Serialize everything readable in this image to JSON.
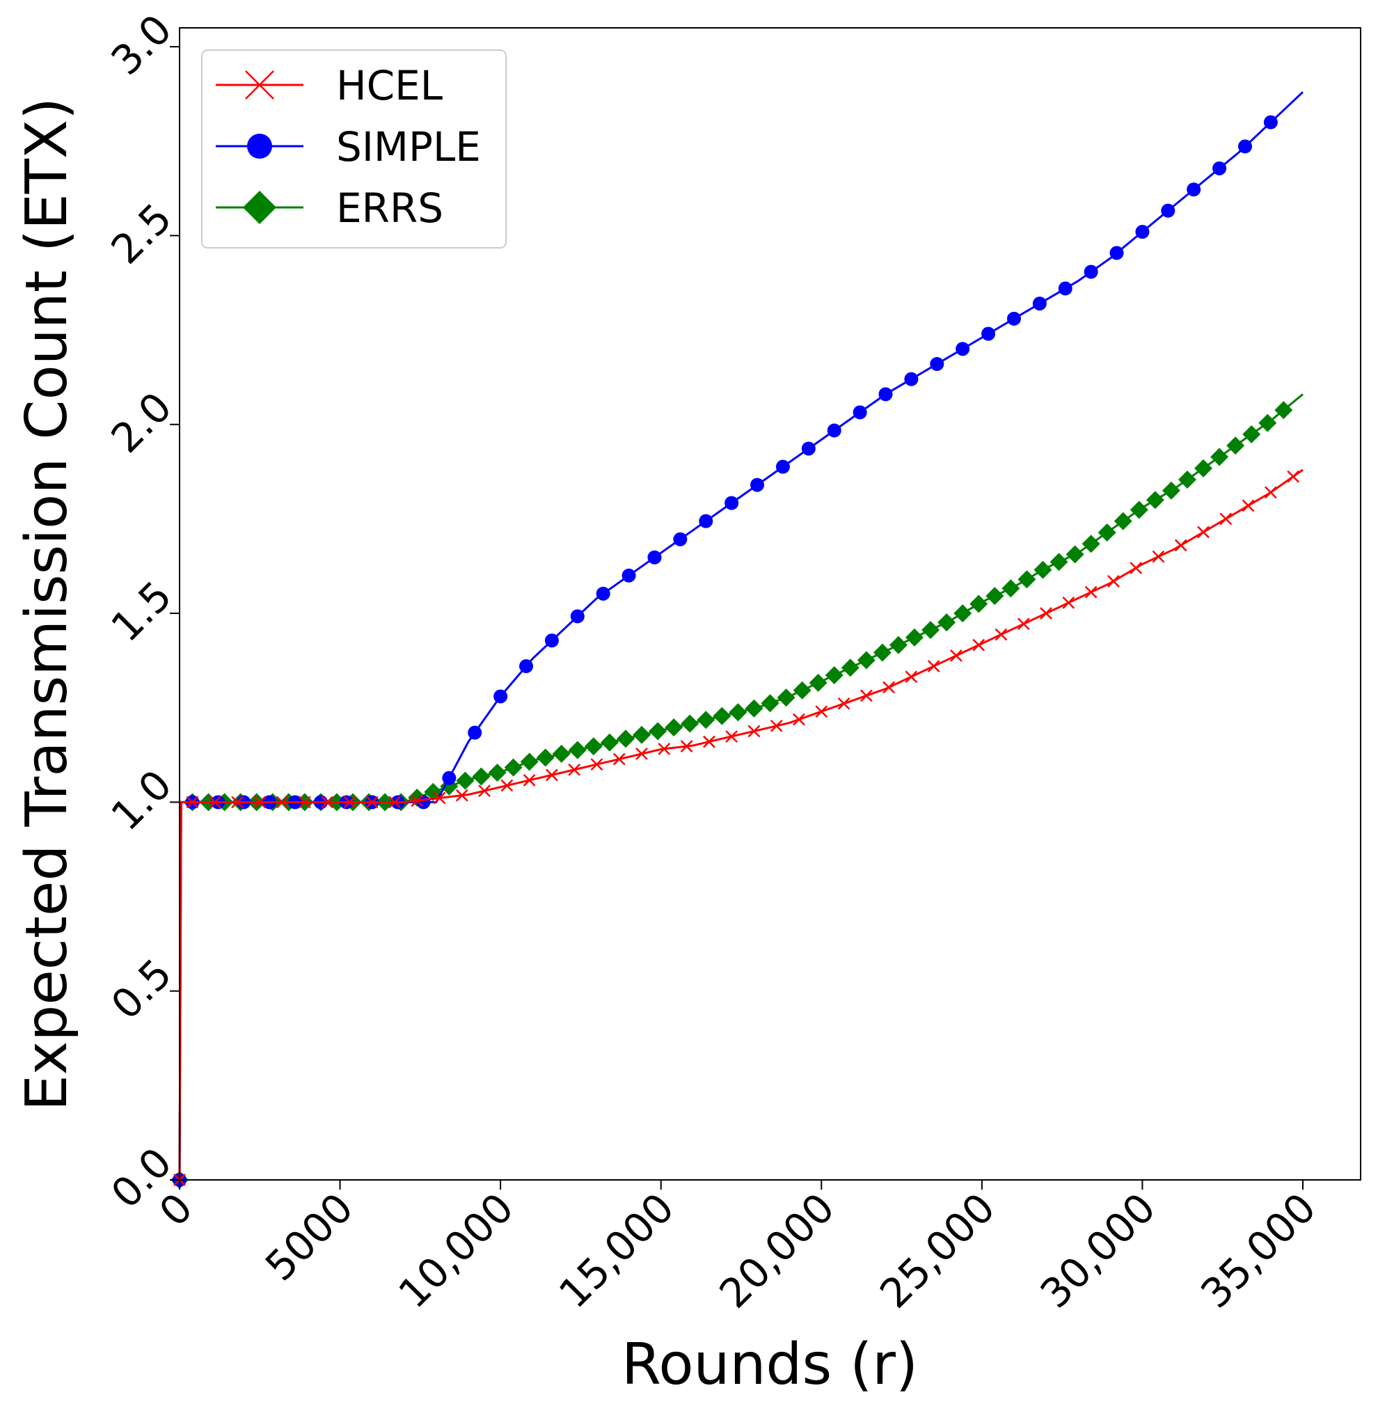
{
  "chart_data": {
    "type": "line",
    "xlabel": "Rounds (r)",
    "ylabel": "Expected Transmission Count (ETX)",
    "xlim": [
      0,
      36800
    ],
    "ylim": [
      0,
      3.05
    ],
    "xticks": [
      0,
      5000,
      10000,
      15000,
      20000,
      25000,
      30000,
      35000
    ],
    "xtick_labels": [
      "0",
      "5000",
      "10,000",
      "15,000",
      "20,000",
      "25,000",
      "30,000",
      "35,000"
    ],
    "yticks": [
      0,
      0.5,
      1.0,
      1.5,
      2.0,
      2.5,
      3.0
    ],
    "ytick_labels": [
      "0.0",
      "0.5",
      "1.0",
      "1.5",
      "2.0",
      "2.5",
      "3.0"
    ],
    "legend_position": "top-left",
    "series": [
      {
        "name": "HCEL",
        "color": "#ff0000",
        "marker": "x",
        "marker_spacing": 700,
        "points": [
          [
            0,
            0
          ],
          [
            50,
            1.0
          ],
          [
            7000,
            1.0
          ],
          [
            8000,
            1.01
          ],
          [
            9000,
            1.02
          ],
          [
            10000,
            1.04
          ],
          [
            11000,
            1.06
          ],
          [
            12000,
            1.08
          ],
          [
            13000,
            1.1
          ],
          [
            14000,
            1.12
          ],
          [
            15000,
            1.14
          ],
          [
            16000,
            1.15
          ],
          [
            17000,
            1.17
          ],
          [
            18000,
            1.19
          ],
          [
            19000,
            1.21
          ],
          [
            20000,
            1.24
          ],
          [
            21000,
            1.27
          ],
          [
            22000,
            1.3
          ],
          [
            23000,
            1.34
          ],
          [
            24000,
            1.38
          ],
          [
            25000,
            1.42
          ],
          [
            26000,
            1.46
          ],
          [
            27000,
            1.5
          ],
          [
            28000,
            1.54
          ],
          [
            29000,
            1.58
          ],
          [
            30000,
            1.63
          ],
          [
            31000,
            1.67
          ],
          [
            32000,
            1.72
          ],
          [
            33000,
            1.77
          ],
          [
            34000,
            1.82
          ],
          [
            35000,
            1.88
          ]
        ]
      },
      {
        "name": "SIMPLE",
        "color": "#0000ff",
        "marker": "circle",
        "marker_spacing": 800,
        "points": [
          [
            0,
            0
          ],
          [
            50,
            1.0
          ],
          [
            8000,
            1.0
          ],
          [
            9000,
            1.16
          ],
          [
            10000,
            1.28
          ],
          [
            11000,
            1.38
          ],
          [
            12000,
            1.46
          ],
          [
            13000,
            1.54
          ],
          [
            14000,
            1.6
          ],
          [
            15000,
            1.66
          ],
          [
            16000,
            1.72
          ],
          [
            17000,
            1.78
          ],
          [
            18000,
            1.84
          ],
          [
            19000,
            1.9
          ],
          [
            20000,
            1.96
          ],
          [
            21000,
            2.02
          ],
          [
            22000,
            2.08
          ],
          [
            23000,
            2.13
          ],
          [
            24000,
            2.18
          ],
          [
            25000,
            2.23
          ],
          [
            26000,
            2.28
          ],
          [
            27000,
            2.33
          ],
          [
            28000,
            2.38
          ],
          [
            29000,
            2.44
          ],
          [
            30000,
            2.51
          ],
          [
            31000,
            2.58
          ],
          [
            32000,
            2.65
          ],
          [
            33000,
            2.72
          ],
          [
            34000,
            2.8
          ],
          [
            35000,
            2.88
          ]
        ]
      },
      {
        "name": "ERRS",
        "color": "#008000",
        "marker": "diamond",
        "marker_spacing": 500,
        "points": [
          [
            0,
            0
          ],
          [
            50,
            1.0
          ],
          [
            7000,
            1.0
          ],
          [
            8000,
            1.03
          ],
          [
            9000,
            1.06
          ],
          [
            10000,
            1.08
          ],
          [
            11000,
            1.11
          ],
          [
            12000,
            1.13
          ],
          [
            13000,
            1.15
          ],
          [
            14000,
            1.17
          ],
          [
            15000,
            1.19
          ],
          [
            16000,
            1.21
          ],
          [
            17000,
            1.23
          ],
          [
            18000,
            1.25
          ],
          [
            19000,
            1.28
          ],
          [
            20000,
            1.32
          ],
          [
            21000,
            1.36
          ],
          [
            22000,
            1.4
          ],
          [
            23000,
            1.44
          ],
          [
            24000,
            1.48
          ],
          [
            25000,
            1.53
          ],
          [
            26000,
            1.57
          ],
          [
            27000,
            1.62
          ],
          [
            28000,
            1.66
          ],
          [
            29000,
            1.72
          ],
          [
            30000,
            1.78
          ],
          [
            31000,
            1.83
          ],
          [
            32000,
            1.89
          ],
          [
            33000,
            1.95
          ],
          [
            34000,
            2.01
          ],
          [
            35000,
            2.08
          ]
        ]
      }
    ]
  }
}
